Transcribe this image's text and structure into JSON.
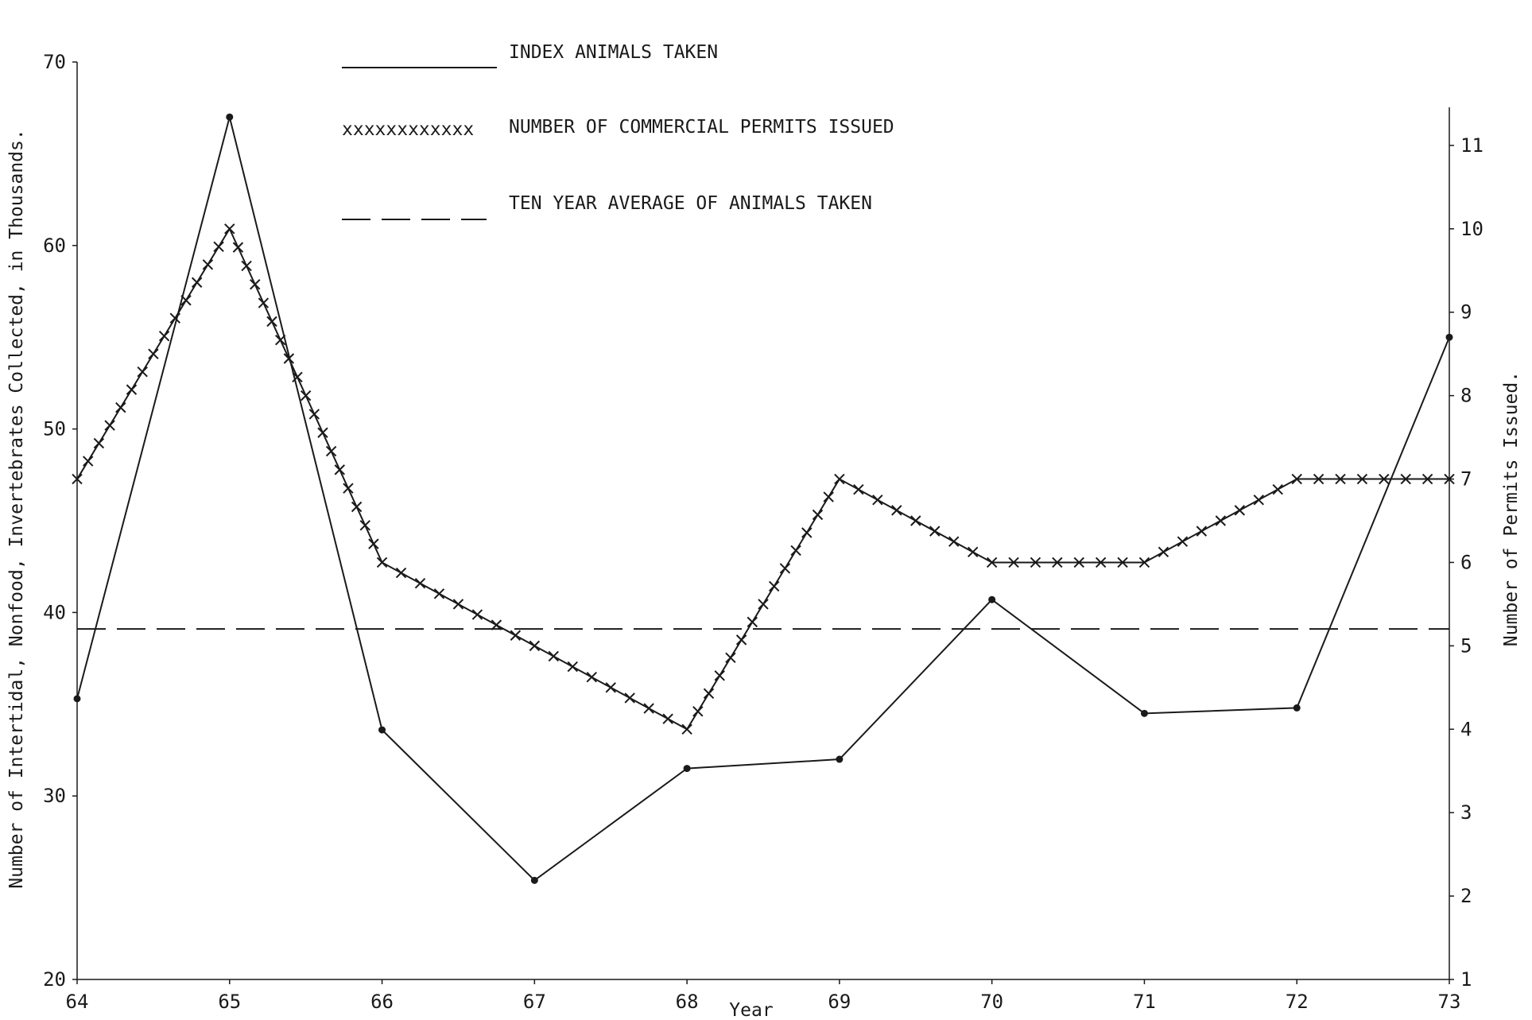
{
  "chart_data": {
    "type": "line",
    "x": [
      "64",
      "65",
      "66",
      "67",
      "68",
      "69",
      "70",
      "71",
      "72",
      "73"
    ],
    "xlabel": "Year",
    "ylabel": "Number of Intertidal, Nonfood, Invertebrates Collected, in Thousands.",
    "y2label": "Number of Permits Issued.",
    "ylim": [
      20,
      70
    ],
    "y2lim": [
      1,
      12
    ],
    "yticks": [
      "20",
      "30",
      "40",
      "50",
      "60",
      "70"
    ],
    "y2ticks": [
      "1",
      "2",
      "3",
      "4",
      "5",
      "6",
      "7",
      "8",
      "9",
      "10",
      "11"
    ],
    "grid": false,
    "legend_position": "top-center",
    "legend": {
      "index_label": "INDEX ANIMALS TAKEN",
      "permits_marker": "xxxxxxxxxxxx",
      "permits_label": "NUMBER OF COMMERCIAL PERMITS ISSUED",
      "average_label": "TEN YEAR AVERAGE OF ANIMALS TAKEN"
    },
    "series": [
      {
        "name": "INDEX ANIMALS TAKEN",
        "axis": "left",
        "style": "solid",
        "values": [
          35.3,
          67.0,
          33.6,
          25.4,
          31.5,
          32.0,
          40.7,
          34.5,
          34.8,
          55.0
        ]
      },
      {
        "name": "NUMBER OF COMMERCIAL PERMITS ISSUED",
        "axis": "right",
        "style": "x-marked",
        "values": [
          7,
          10,
          6,
          5,
          4,
          7,
          6,
          6,
          7,
          7
        ]
      },
      {
        "name": "TEN YEAR AVERAGE OF ANIMALS TAKEN",
        "axis": "left",
        "style": "dashed",
        "values": [
          39.1,
          39.1,
          39.1,
          39.1,
          39.1,
          39.1,
          39.1,
          39.1,
          39.1,
          39.1
        ]
      }
    ],
    "colors": {
      "ink": "#1a1a1a",
      "background": "#ffffff"
    }
  }
}
